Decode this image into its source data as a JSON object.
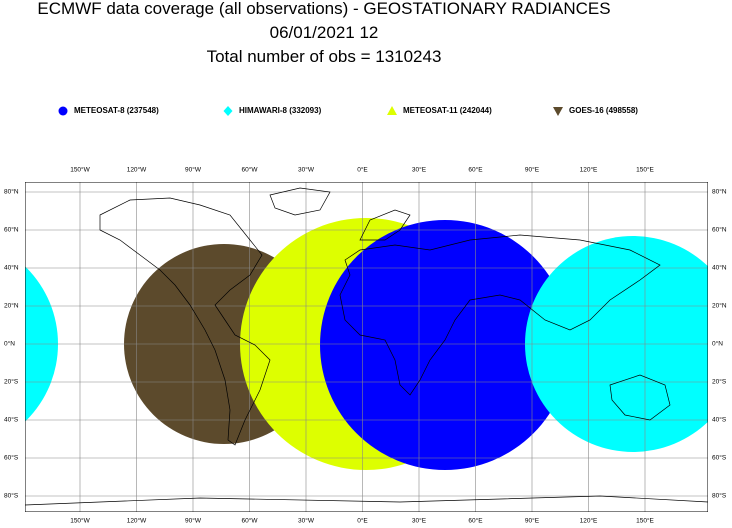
{
  "header": {
    "lines": [
      "ECMWF data coverage (all observations) - GEOSTATIONARY RADIANCES",
      "06/01/2021 12",
      "Total number of obs = 1310243"
    ]
  },
  "legend": [
    {
      "label": "METEOSAT-8 (237548)"
    },
    {
      "label": "HIMAWARI-8 (332093)"
    },
    {
      "label": "METEOSAT-11 (242044)"
    },
    {
      "label": "GOES-16 (498558)"
    }
  ],
  "map": {
    "lon_labels": [
      "150°W",
      "120°W",
      "90°W",
      "60°W",
      "30°W",
      "0°E",
      "30°E",
      "60°E",
      "90°E",
      "120°E",
      "150°E"
    ],
    "lat_labels": [
      "80°N",
      "60°N",
      "40°N",
      "20°N",
      "0°N",
      "20°S",
      "40°S",
      "60°S",
      "80°S"
    ]
  }
}
